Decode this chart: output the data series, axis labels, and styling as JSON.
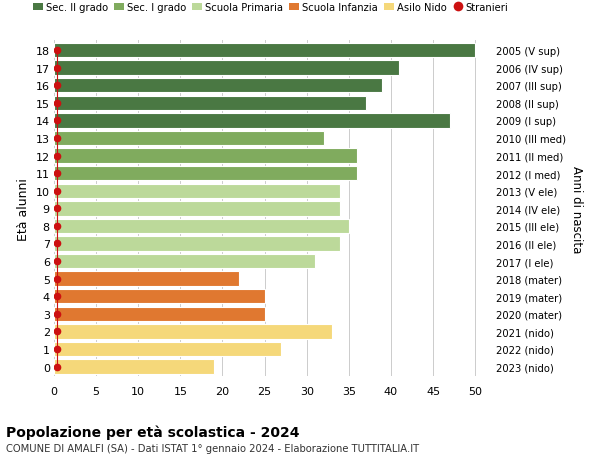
{
  "ages": [
    18,
    17,
    16,
    15,
    14,
    13,
    12,
    11,
    10,
    9,
    8,
    7,
    6,
    5,
    4,
    3,
    2,
    1,
    0
  ],
  "years": [
    "2005 (V sup)",
    "2006 (IV sup)",
    "2007 (III sup)",
    "2008 (II sup)",
    "2009 (I sup)",
    "2010 (III med)",
    "2011 (II med)",
    "2012 (I med)",
    "2013 (V ele)",
    "2014 (IV ele)",
    "2015 (III ele)",
    "2016 (II ele)",
    "2017 (I ele)",
    "2018 (mater)",
    "2019 (mater)",
    "2020 (mater)",
    "2021 (nido)",
    "2022 (nido)",
    "2023 (nido)"
  ],
  "values": [
    50,
    41,
    39,
    37,
    47,
    32,
    36,
    36,
    34,
    34,
    35,
    34,
    31,
    22,
    25,
    25,
    33,
    27,
    19
  ],
  "bar_colors": [
    "#4a7843",
    "#4a7843",
    "#4a7843",
    "#4a7843",
    "#4a7843",
    "#80ab5e",
    "#80ab5e",
    "#80ab5e",
    "#bcd99a",
    "#bcd99a",
    "#bcd99a",
    "#bcd99a",
    "#bcd99a",
    "#e07830",
    "#e07830",
    "#e07830",
    "#f5d87a",
    "#f5d87a",
    "#f5d87a"
  ],
  "legend_labels": [
    "Sec. II grado",
    "Sec. I grado",
    "Scuola Primaria",
    "Scuola Infanzia",
    "Asilo Nido",
    "Stranieri"
  ],
  "legend_colors": [
    "#4a7843",
    "#80ab5e",
    "#bcd99a",
    "#e07830",
    "#f5d87a",
    "#cc1111"
  ],
  "stranieri_color": "#cc1111",
  "ylabel_left": "Età alunni",
  "ylabel_right": "Anni di nascita",
  "xlim": [
    0,
    52
  ],
  "xticks": [
    0,
    5,
    10,
    15,
    20,
    25,
    30,
    35,
    40,
    45,
    50
  ],
  "title": "Popolazione per età scolastica - 2024",
  "subtitle": "COMUNE DI AMALFI (SA) - Dati ISTAT 1° gennaio 2024 - Elaborazione TUTTITALIA.IT",
  "bg_color": "#ffffff",
  "grid_color": "#cccccc"
}
